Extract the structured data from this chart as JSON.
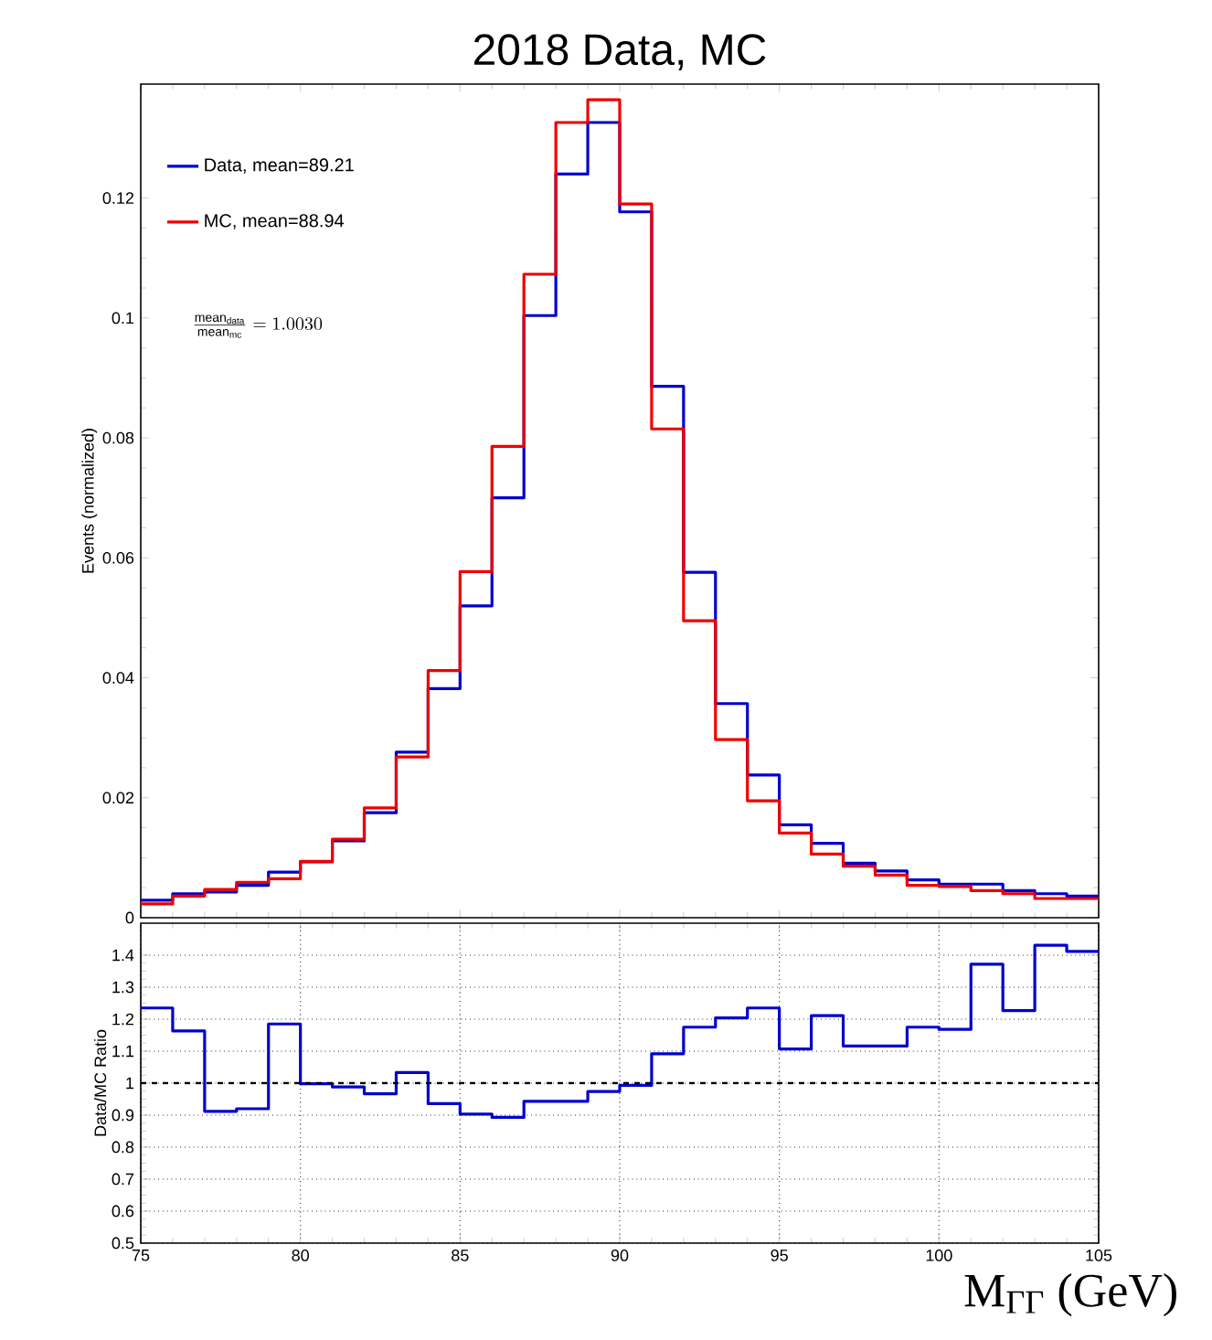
{
  "chart_data": [
    {
      "type": "histogram",
      "title": "2018 Data, MC",
      "ylabel": "Events (normalized)",
      "bins": [
        75,
        76,
        77,
        78,
        79,
        80,
        81,
        82,
        83,
        84,
        85,
        86,
        87,
        88,
        89,
        90,
        91,
        92,
        93,
        94,
        95,
        96,
        97,
        98,
        99,
        100,
        101,
        102,
        103,
        104,
        105
      ],
      "series": [
        {
          "name": "Data, mean=89.21",
          "color": "#0000cc",
          "values": [
            0.0029,
            0.004,
            0.0043,
            0.0054,
            0.0076,
            0.0093,
            0.0128,
            0.0175,
            0.0276,
            0.0382,
            0.052,
            0.07,
            0.1004,
            0.124,
            0.1326,
            0.1177,
            0.0886,
            0.0576,
            0.0357,
            0.0238,
            0.0155,
            0.0124,
            0.0091,
            0.0078,
            0.0063,
            0.0056,
            0.0056,
            0.0045,
            0.004,
            0.0036
          ]
        },
        {
          "name": "MC, mean=88.94",
          "color": "#ee0000",
          "values": [
            0.0023,
            0.0036,
            0.0047,
            0.0059,
            0.0065,
            0.0094,
            0.0131,
            0.0183,
            0.0268,
            0.0412,
            0.0577,
            0.0786,
            0.1073,
            0.1326,
            0.1364,
            0.119,
            0.0815,
            0.0495,
            0.0297,
            0.0195,
            0.0141,
            0.0106,
            0.0086,
            0.0071,
            0.0054,
            0.0052,
            0.0045,
            0.004,
            0.0032,
            0.0032
          ]
        }
      ],
      "annotations": [
        "\\frac{\\mathrm{mean}_{\\mathrm{data}}}{\\mathrm{mean}_{\\mathrm{mc}}}=1.0030"
      ],
      "xlim": [
        75,
        105
      ],
      "xticks": [
        75,
        80,
        85,
        90,
        95,
        100,
        105
      ],
      "ylim": [
        0,
        0.139
      ],
      "yticks": [
        0,
        0.02,
        0.04,
        0.06,
        0.08,
        0.1,
        0.12
      ],
      "tick_labels": "y",
      "legend": "top left",
      "grid": false
    },
    {
      "type": "histogram",
      "xlabel": "M$_{ΓΓ}$ (GeV)",
      "ylabel": "Data/MC Ratio",
      "bins": [
        75,
        76,
        77,
        78,
        79,
        80,
        81,
        82,
        83,
        84,
        85,
        86,
        87,
        88,
        89,
        90,
        91,
        92,
        93,
        94,
        95,
        96,
        97,
        98,
        99,
        100,
        101,
        102,
        103,
        104,
        105
      ],
      "series": [
        {
          "color": "#0000cc",
          "values": [
            1.235,
            1.163,
            0.912,
            0.92,
            1.185,
            0.998,
            0.988,
            0.967,
            1.033,
            0.936,
            0.903,
            0.893,
            0.943,
            0.943,
            0.974,
            0.993,
            1.092,
            1.175,
            1.204,
            1.235,
            1.107,
            1.211,
            1.116,
            1.116,
            1.175,
            1.168,
            1.372,
            1.227,
            1.431,
            1.412
          ]
        }
      ],
      "ref_lines": [
        {
          "axis": "y",
          "value": 1,
          "color": "#000000",
          "line_style": "dashed"
        }
      ],
      "xlim": [
        75,
        105
      ],
      "xticks": [
        75,
        80,
        85,
        90,
        95,
        100,
        105
      ],
      "ylim": [
        0.5,
        1.5
      ],
      "yticks": [
        0.5,
        0.6,
        0.7,
        0.8,
        0.9,
        1,
        1.1,
        1.2,
        1.3,
        1.4
      ],
      "grid": true
    }
  ]
}
